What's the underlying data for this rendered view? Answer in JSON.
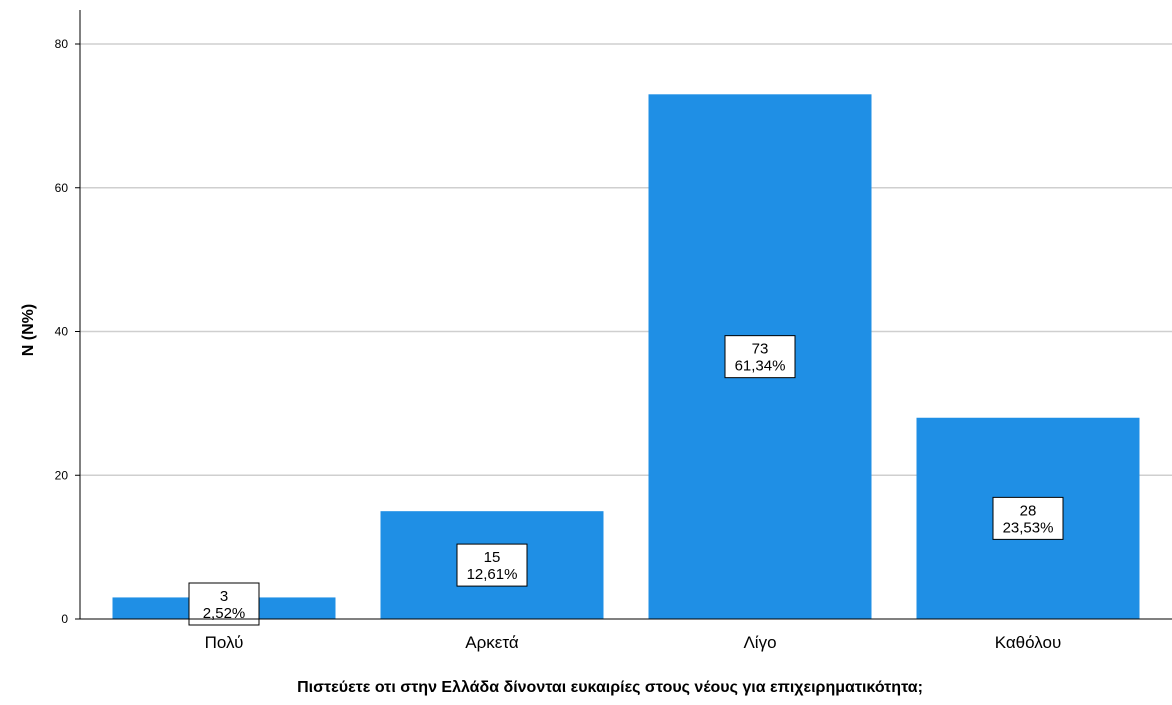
{
  "chart_data": {
    "type": "bar",
    "title": "",
    "xlabel": "Πιστεύετε οτι στην Ελλάδα δίνονται ευκαιρίες στους νέους για επιχειρηματικότητα;",
    "ylabel": "N (N%)",
    "categories": [
      "Πολύ",
      "Αρκετά",
      "Λίγο",
      "Καθόλου"
    ],
    "values": [
      3,
      15,
      73,
      28
    ],
    "percent_labels": [
      "2,52%",
      "12,61%",
      "61,34%",
      "23,53%"
    ],
    "count_labels": [
      "3",
      "15",
      "73",
      "28"
    ],
    "ylim": [
      0,
      80
    ],
    "yticks": [
      0,
      20,
      40,
      60,
      80
    ],
    "grid": true,
    "legend": "none",
    "bar_color": "#1f8fe5"
  }
}
